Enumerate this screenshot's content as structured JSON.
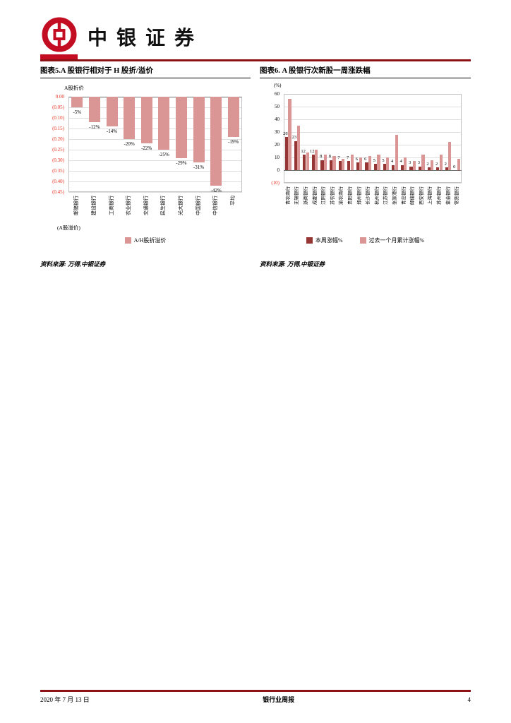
{
  "header": {
    "brand": "中银证券"
  },
  "chart_data": [
    {
      "id": "fig5",
      "type": "bar",
      "title": "图表5.A 股银行相对于 H 股折/溢价",
      "source": "资料来源: 万得,中银证券",
      "top_axis_label": "A股折价",
      "bottom_axis_label": "(A股溢价)",
      "categories": [
        "邮储银行",
        "建设银行",
        "工商银行",
        "农业银行",
        "交通银行",
        "民生银行",
        "光大银行",
        "中国银行",
        "中信银行",
        "平均"
      ],
      "values": [
        -5,
        -12,
        -14,
        -20,
        -22,
        -25,
        -29,
        -31,
        -42,
        -19
      ],
      "value_labels": [
        "-5%",
        "-12%",
        "-14%",
        "-20%",
        "-22%",
        "-25%",
        "-29%",
        "-31%",
        "-42%",
        "-19%"
      ],
      "y_ticks": [
        "0.00",
        "(0.05)",
        "(0.10)",
        "(0.15)",
        "(0.20)",
        "(0.25)",
        "(0.30)",
        "(0.35)",
        "(0.40)",
        "(0.45)"
      ],
      "ylim": [
        0,
        -45
      ],
      "grid": true,
      "legend": [
        "A/H股折溢价"
      ],
      "legend_position": "bottom",
      "bar_color": "#d99694"
    },
    {
      "id": "fig6",
      "type": "bar",
      "title": "图表6. A 股银行次新股一周涨跌幅",
      "source": "资料来源: 万得,中银证券",
      "unit_label": "(%)",
      "categories": [
        "青农商行",
        "无锡银行",
        "浙商银行",
        "成都银行",
        "江阴银行",
        "苏农银行",
        "渝农商行",
        "贵阳银行",
        "郑州银行",
        "长沙银行",
        "杭州银行",
        "江苏银行",
        "张家港行",
        "青岛银行",
        "邮储银行",
        "西安银行",
        "上海银行",
        "苏州银行",
        "紫金银行",
        "常熟银行"
      ],
      "series": [
        {
          "name": "本周涨幅%",
          "color": "#963634",
          "values": [
            26,
            23,
            12,
            12,
            8,
            8,
            7,
            7,
            6,
            6,
            5,
            5,
            4,
            4,
            3,
            3,
            2,
            2,
            2,
            0
          ]
        },
        {
          "name": "过去一个月累计涨幅%",
          "color": "#d99694",
          "values": [
            56,
            35,
            14,
            16,
            12,
            11,
            9,
            12,
            10,
            11,
            12,
            10,
            28,
            10,
            7,
            12,
            8,
            12,
            22,
            9
          ]
        }
      ],
      "y_ticks": [
        "60",
        "50",
        "40",
        "30",
        "20",
        "10",
        "0",
        "(10)"
      ],
      "ylim": [
        -10,
        60
      ],
      "grid": true,
      "legend_position": "bottom"
    }
  ],
  "footer": {
    "date": "2020 年 7 月 13 日",
    "center": "银行业周报",
    "page": "4"
  },
  "colors": {
    "rule": "#8c1218",
    "logo": "#c30d23",
    "tick_red": "#ea3323"
  }
}
